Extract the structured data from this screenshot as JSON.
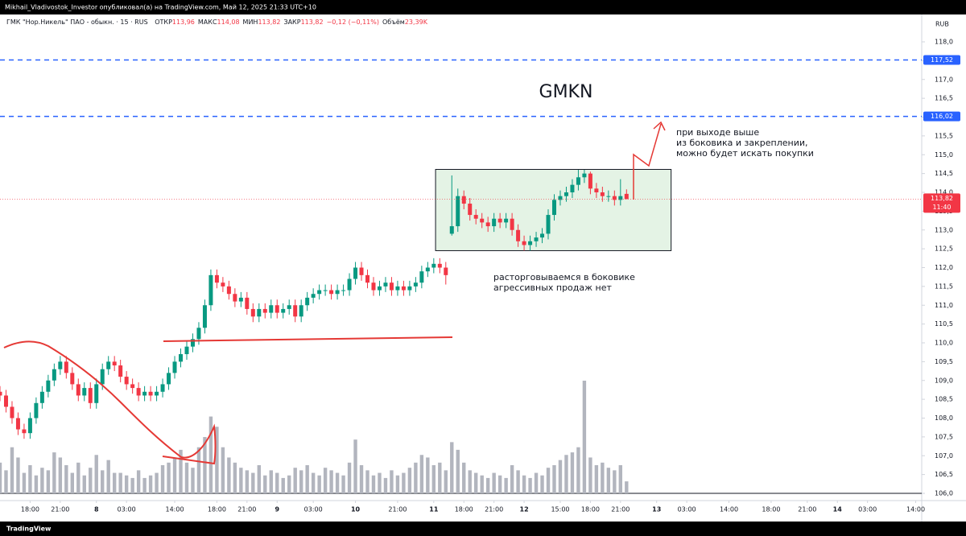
{
  "header": {
    "publisher": "Mikhail_Vladivostok_Investor опубликовал(а) на TradingView.com, Май 12, 2025 21:33 UTC+10"
  },
  "footer": {
    "brand": "TradingView"
  },
  "chart_data": {
    "type": "candlestick",
    "info": {
      "symbol": "ГМК \"Нор.Никель\" ПАО - обыкн. · 15 · RUS",
      "fields": [
        {
          "label": "ОТКР",
          "value": "113,96"
        },
        {
          "label": "МАКС",
          "value": "114,08"
        },
        {
          "label": "МИН",
          "value": "113,82"
        },
        {
          "label": "ЗАКР",
          "value": "113,82"
        }
      ],
      "change": "−0,12 (−0,11%)",
      "volume_label": "Объём",
      "volume_value": "23,39K"
    },
    "currency": "RUB",
    "colors": {
      "up": "#089981",
      "down": "#f23645",
      "volume": "#b2b5be"
    },
    "open": [
      108.7,
      108.6,
      108.3,
      108.0,
      107.7,
      107.6,
      108.0,
      108.4,
      108.7,
      109.0,
      109.3,
      109.5,
      109.2,
      108.9,
      108.6,
      108.8,
      108.4,
      108.9,
      109.3,
      109.5,
      109.4,
      109.1,
      108.9,
      108.8,
      108.6,
      108.7,
      108.6,
      108.7,
      108.9,
      109.2,
      109.5,
      109.7,
      109.9,
      110.1,
      110.4,
      111.0,
      111.8,
      111.6,
      111.5,
      111.3,
      111.1,
      111.2,
      110.9,
      110.7,
      110.9,
      110.8,
      111.0,
      110.8,
      110.9,
      111.0,
      110.7,
      111.0,
      111.2,
      111.3,
      111.4,
      111.4,
      111.3,
      111.4,
      111.4,
      111.7,
      112.0,
      111.8,
      111.6,
      111.4,
      111.5,
      111.6,
      111.4,
      111.5,
      111.4,
      111.5,
      111.6,
      111.9,
      112.0,
      112.1,
      112.0,
      112.9,
      113.1,
      113.9,
      113.7,
      113.4,
      113.3,
      113.2,
      113.1,
      113.3,
      113.2,
      113.3,
      113.0,
      112.7,
      112.6,
      112.7,
      112.8,
      112.9,
      113.4,
      113.8,
      113.9,
      114.0,
      114.2,
      114.4,
      114.5,
      114.1,
      114.0,
      113.9,
      113.9,
      113.8,
      113.96
    ],
    "high": [
      108.85,
      108.75,
      108.45,
      108.15,
      107.85,
      108.15,
      108.55,
      108.85,
      109.15,
      109.45,
      109.65,
      109.65,
      109.35,
      109.05,
      108.95,
      108.95,
      109.05,
      109.45,
      109.65,
      109.65,
      109.55,
      109.25,
      109.05,
      108.95,
      108.85,
      108.85,
      108.85,
      109.05,
      109.35,
      109.65,
      109.85,
      110.05,
      110.25,
      110.55,
      111.15,
      111.95,
      111.95,
      111.75,
      111.65,
      111.45,
      111.35,
      111.35,
      111.05,
      111.05,
      111.05,
      111.15,
      111.15,
      111.05,
      111.15,
      111.15,
      111.15,
      111.35,
      111.45,
      111.55,
      111.55,
      111.55,
      111.55,
      111.55,
      111.85,
      112.15,
      112.15,
      111.95,
      111.75,
      111.65,
      111.75,
      111.75,
      111.65,
      111.65,
      111.65,
      111.75,
      112.05,
      112.15,
      112.25,
      112.25,
      112.15,
      114.45,
      114.1,
      114.05,
      113.85,
      113.55,
      113.45,
      113.35,
      113.45,
      113.45,
      113.45,
      113.45,
      113.15,
      112.85,
      112.85,
      112.95,
      113.05,
      113.55,
      113.95,
      114.05,
      114.15,
      114.35,
      114.6,
      114.6,
      114.55,
      114.25,
      114.15,
      114.05,
      114.05,
      114.35,
      114.08
    ],
    "low": [
      108.45,
      108.15,
      107.85,
      107.55,
      107.45,
      107.45,
      107.85,
      108.25,
      108.55,
      108.85,
      109.15,
      109.05,
      108.75,
      108.45,
      108.45,
      108.25,
      108.25,
      108.75,
      109.15,
      109.25,
      108.95,
      108.75,
      108.65,
      108.45,
      108.45,
      108.45,
      108.45,
      108.55,
      108.75,
      109.05,
      109.35,
      109.55,
      109.75,
      109.95,
      110.25,
      110.85,
      111.45,
      111.35,
      111.15,
      110.95,
      110.95,
      110.75,
      110.55,
      110.55,
      110.65,
      110.65,
      110.65,
      110.65,
      110.75,
      110.55,
      110.55,
      110.85,
      111.05,
      111.15,
      111.25,
      111.15,
      111.15,
      111.25,
      111.25,
      111.55,
      111.65,
      111.45,
      111.25,
      111.25,
      111.35,
      111.25,
      111.25,
      111.25,
      111.25,
      111.35,
      111.45,
      111.75,
      111.85,
      111.85,
      111.55,
      112.85,
      112.95,
      113.55,
      113.25,
      113.15,
      113.05,
      112.95,
      112.95,
      113.05,
      113.05,
      112.85,
      112.55,
      112.45,
      112.45,
      112.55,
      112.65,
      112.75,
      113.25,
      113.65,
      113.75,
      113.85,
      114.05,
      114.25,
      113.95,
      113.85,
      113.75,
      113.75,
      113.65,
      113.65,
      113.82
    ],
    "close": [
      108.6,
      108.3,
      108.0,
      107.7,
      107.6,
      108.0,
      108.4,
      108.7,
      109.0,
      109.3,
      109.5,
      109.2,
      108.9,
      108.6,
      108.8,
      108.4,
      108.9,
      109.3,
      109.5,
      109.4,
      109.1,
      108.9,
      108.8,
      108.6,
      108.7,
      108.6,
      108.7,
      108.9,
      109.2,
      109.5,
      109.7,
      109.9,
      110.1,
      110.4,
      111.0,
      111.8,
      111.6,
      111.5,
      111.3,
      111.1,
      111.2,
      110.9,
      110.7,
      110.9,
      110.8,
      111.0,
      110.8,
      110.9,
      111.0,
      110.7,
      111.0,
      111.2,
      111.3,
      111.4,
      111.4,
      111.3,
      111.4,
      111.4,
      111.7,
      112.0,
      111.8,
      111.6,
      111.4,
      111.5,
      111.6,
      111.4,
      111.5,
      111.4,
      111.5,
      111.6,
      111.9,
      112.0,
      112.1,
      112.0,
      111.8,
      113.1,
      113.9,
      113.7,
      113.4,
      113.3,
      113.2,
      113.1,
      113.3,
      113.2,
      113.3,
      113.0,
      112.7,
      112.6,
      112.7,
      112.8,
      112.9,
      113.4,
      113.8,
      113.9,
      114.0,
      114.2,
      114.4,
      114.5,
      114.1,
      114.0,
      113.9,
      113.9,
      113.8,
      113.9,
      113.82
    ],
    "volume": [
      60,
      45,
      90,
      70,
      40,
      55,
      35,
      50,
      45,
      80,
      70,
      55,
      40,
      60,
      35,
      50,
      75,
      45,
      65,
      40,
      40,
      35,
      30,
      45,
      30,
      35,
      40,
      55,
      60,
      70,
      85,
      60,
      50,
      90,
      110,
      150,
      130,
      90,
      70,
      60,
      50,
      45,
      40,
      55,
      35,
      45,
      40,
      30,
      35,
      50,
      45,
      55,
      40,
      35,
      50,
      45,
      40,
      35,
      60,
      105,
      55,
      45,
      35,
      40,
      30,
      45,
      35,
      40,
      50,
      60,
      75,
      70,
      55,
      60,
      45,
      100,
      85,
      60,
      45,
      40,
      35,
      30,
      40,
      35,
      30,
      55,
      45,
      35,
      30,
      40,
      35,
      50,
      55,
      65,
      75,
      80,
      90,
      220,
      70,
      55,
      60,
      50,
      45,
      55,
      23.39
    ],
    "xlim": [
      0,
      153
    ],
    "xticks": [
      {
        "value": 5,
        "label": "18:00"
      },
      {
        "value": 10,
        "label": "21:00"
      },
      {
        "value": 16,
        "label": "8"
      },
      {
        "value": 21,
        "label": "03:00"
      },
      {
        "value": 29,
        "label": "14:00"
      },
      {
        "value": 36,
        "label": "18:00"
      },
      {
        "value": 41,
        "label": "21:00"
      },
      {
        "value": 46,
        "label": "9"
      },
      {
        "value": 52,
        "label": "03:00"
      },
      {
        "value": 59,
        "label": "10"
      },
      {
        "value": 66,
        "label": "21:00"
      },
      {
        "value": 72,
        "label": "11"
      },
      {
        "value": 77,
        "label": "18:00"
      },
      {
        "value": 82,
        "label": "21:00"
      },
      {
        "value": 87,
        "label": "12"
      },
      {
        "value": 93,
        "label": "15:00"
      },
      {
        "value": 98,
        "label": "18:00"
      },
      {
        "value": 103,
        "label": "21:00"
      },
      {
        "value": 109,
        "label": "13"
      },
      {
        "value": 114,
        "label": "03:00"
      },
      {
        "value": 121,
        "label": "14:00"
      },
      {
        "value": 128,
        "label": "18:00"
      },
      {
        "value": 134,
        "label": "21:00"
      },
      {
        "value": 139,
        "label": "14"
      },
      {
        "value": 144,
        "label": "03:00"
      },
      {
        "value": 152,
        "label": "14:00"
      }
    ],
    "ylim": [
      106,
      118
    ],
    "yticks": [
      {
        "value": 106,
        "label": "106,0"
      },
      {
        "value": 106.5,
        "label": "106,5"
      },
      {
        "value": 107,
        "label": "107,0"
      },
      {
        "value": 107.5,
        "label": "107,5"
      },
      {
        "value": 108,
        "label": "108,0"
      },
      {
        "value": 108.5,
        "label": "108,5"
      },
      {
        "value": 109,
        "label": "109,0"
      },
      {
        "value": 109.5,
        "label": "109,5"
      },
      {
        "value": 110,
        "label": "110,0"
      },
      {
        "value": 110.5,
        "label": "110,5"
      },
      {
        "value": 111,
        "label": "111,0"
      },
      {
        "value": 111.5,
        "label": "111,5"
      },
      {
        "value": 112,
        "label": "112,0"
      },
      {
        "value": 112.5,
        "label": "112,5"
      },
      {
        "value": 113,
        "label": "113,0"
      },
      {
        "value": 113.5,
        "label": "113,5"
      },
      {
        "value": 114,
        "label": "114,0"
      },
      {
        "value": 114.5,
        "label": "114,5"
      },
      {
        "value": 115,
        "label": "115,0"
      },
      {
        "value": 115.5,
        "label": "115,5"
      },
      {
        "value": 116,
        "label": "116,0"
      },
      {
        "value": 116.5,
        "label": "116,5"
      },
      {
        "value": 117,
        "label": "117,0"
      },
      {
        "value": 117.5,
        "label": "117,5"
      },
      {
        "value": 118,
        "label": "118,0"
      }
    ],
    "hlines": [
      {
        "value": 117.52,
        "label": "117,52",
        "color": "#2962ff"
      },
      {
        "value": 116.02,
        "label": "116,02",
        "color": "#2962ff"
      }
    ],
    "last_price": {
      "value": 113.82,
      "label": "113,82",
      "timer": "11:40",
      "color": "#f23645"
    },
    "range_box": {
      "top": 114.61,
      "bottom": 112.45,
      "start": 72.3,
      "end": 111.4
    },
    "annotations": [
      {
        "lines": [
          "GMKN"
        ]
      },
      {
        "lines": [
          "при выходе выше",
          "из боковика и закреплении,",
          "можно будет искать покупки"
        ]
      },
      {
        "lines": [
          "расторговываемся в боковике",
          "агрессивных продаж нет"
        ]
      }
    ]
  }
}
